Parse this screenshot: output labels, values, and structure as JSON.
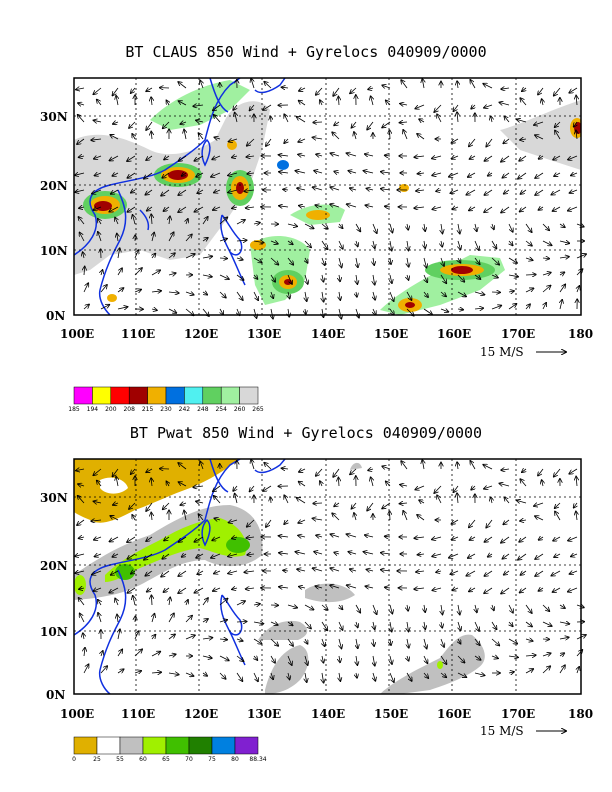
{
  "panels": [
    {
      "title": "BT CLAUS 850 Wind + Gyrelocs 040909/0000",
      "lat_ticks": [
        "30N",
        "20N",
        "10N",
        "0N"
      ],
      "lon_ticks": [
        "100E",
        "110E",
        "120E",
        "130E",
        "140E",
        "150E",
        "160E",
        "170E",
        "180"
      ],
      "scale_label": "15 M/S",
      "colorbar": {
        "labels": [
          "185",
          "194",
          "200",
          "208",
          "215",
          "230",
          "242",
          "248",
          "254",
          "260",
          "265"
        ],
        "colors": [
          "#ff00ff",
          "#ffff00",
          "#ff0000",
          "#a00000",
          "#f0b000",
          "#0070e0",
          "#50f0f0",
          "#60d060",
          "#a0f0a0",
          "#d8d8d8"
        ]
      }
    },
    {
      "title": "BT Pwat 850 Wind + Gyrelocs 040909/0000",
      "lat_ticks": [
        "30N",
        "20N",
        "10N",
        "0N"
      ],
      "lon_ticks": [
        "100E",
        "110E",
        "120E",
        "130E",
        "140E",
        "150E",
        "160E",
        "170E",
        "180"
      ],
      "scale_label": "15 M/S",
      "colorbar": {
        "labels": [
          "0",
          "25",
          "55",
          "60",
          "65",
          "70",
          "75",
          "80",
          "88.34"
        ],
        "colors": [
          "#e0b000",
          "#ffffff",
          "#c0c0c0",
          "#a0f000",
          "#40c000",
          "#208000",
          "#0080e0",
          "#8020d0"
        ]
      }
    }
  ]
}
